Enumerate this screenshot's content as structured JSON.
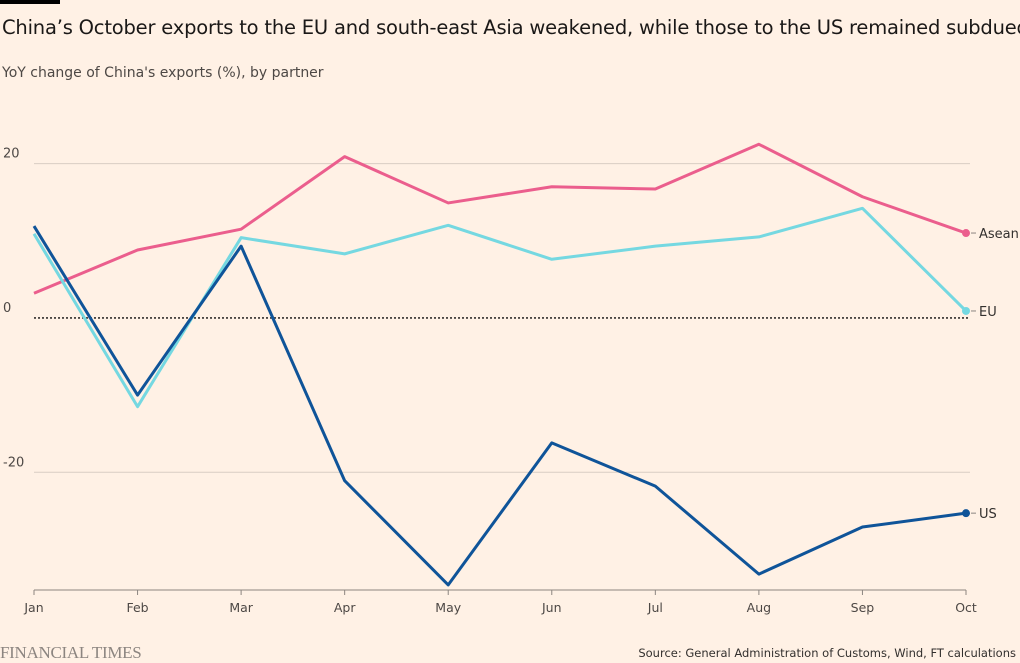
{
  "title": "China’s October exports to the EU and south-east Asia weakened, while those to the US remained subdued",
  "subtitle": "YoY change of China's exports (%), by partner",
  "source": "Source: General Administration of Customs, Wind, FT calculations",
  "logo": "FINANCIAL TIMES",
  "chart_data": {
    "type": "line",
    "categories": [
      "Jan",
      "Feb",
      "Mar",
      "Apr",
      "May",
      "Jun",
      "Jul",
      "Aug",
      "Sep",
      "Oct"
    ],
    "y_ticks": [
      20,
      0,
      -20
    ],
    "y_tick_labels": [
      "20",
      "0",
      "-20"
    ],
    "ylim": [
      -35,
      25
    ],
    "grid": true,
    "legend": "direct labels at line ends (right)",
    "series": [
      {
        "name": "Asean",
        "color": "#eb5e8d",
        "values": [
          3.2,
          8.8,
          11.5,
          20.9,
          14.9,
          17.0,
          16.7,
          22.5,
          15.7,
          11.0
        ]
      },
      {
        "name": "EU",
        "color": "#75d8e1",
        "values": [
          10.9,
          -11.5,
          10.4,
          8.3,
          12.0,
          7.6,
          9.3,
          10.5,
          14.2,
          0.9
        ]
      },
      {
        "name": "US",
        "color": "#0f5499",
        "values": [
          11.9,
          -10.0,
          9.3,
          -21.1,
          -34.6,
          -16.2,
          -21.8,
          -33.2,
          -27.1,
          -25.3
        ]
      }
    ]
  }
}
